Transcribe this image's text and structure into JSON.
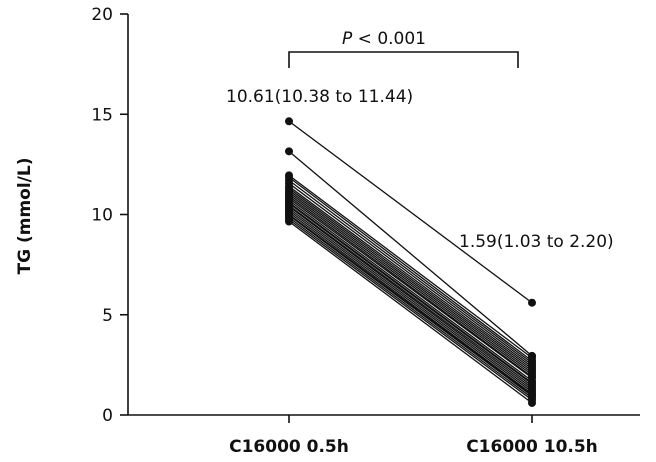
{
  "chart_data": {
    "type": "line",
    "categories": [
      "C16000 0.5h",
      "C16000 10.5h"
    ],
    "xlabel": "",
    "ylabel": "TG (mmol/L)",
    "ylim": [
      0,
      20
    ],
    "yticks": [
      "0",
      "5",
      "10",
      "15",
      "20"
    ],
    "series_color": "#111111",
    "grid": false,
    "annotations": {
      "left_summary": "10.61(10.38 to 11.44)",
      "right_summary": "1.59(1.03 to 2.20)",
      "significance_p": "P",
      "significance_rest": " < 0.001"
    },
    "pairs": [
      [
        14.65,
        5.6
      ],
      [
        13.15,
        2.95
      ],
      [
        11.95,
        2.85
      ],
      [
        11.85,
        2.7
      ],
      [
        11.7,
        2.6
      ],
      [
        11.55,
        2.5
      ],
      [
        11.4,
        2.4
      ],
      [
        11.3,
        2.3
      ],
      [
        11.2,
        2.2
      ],
      [
        11.1,
        2.1
      ],
      [
        11.0,
        2.0
      ],
      [
        10.9,
        1.9
      ],
      [
        10.8,
        1.85
      ],
      [
        10.7,
        1.7
      ],
      [
        10.6,
        1.6
      ],
      [
        10.55,
        1.55
      ],
      [
        10.45,
        1.45
      ],
      [
        10.4,
        1.35
      ],
      [
        10.3,
        1.25
      ],
      [
        10.2,
        1.15
      ],
      [
        10.1,
        1.05
      ],
      [
        10.0,
        1.0
      ],
      [
        9.95,
        0.95
      ],
      [
        9.85,
        0.85
      ],
      [
        9.75,
        0.75
      ],
      [
        9.65,
        0.6
      ]
    ]
  }
}
